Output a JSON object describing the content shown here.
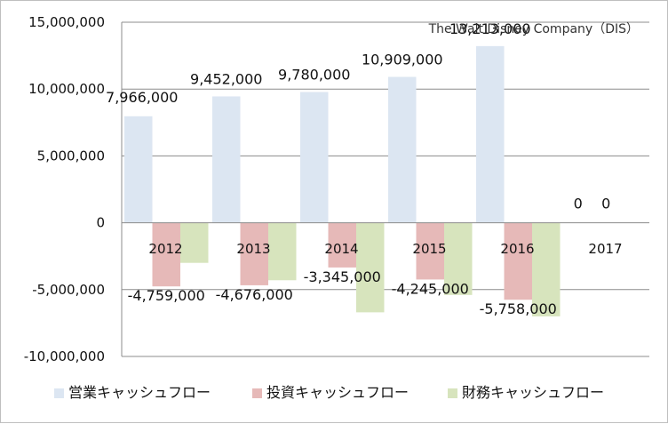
{
  "chart_data": {
    "type": "bar",
    "title": "The Walt Disney Company（DIS）",
    "categories": [
      "2012",
      "2013",
      "2014",
      "2015",
      "2016",
      "2017"
    ],
    "ylim": [
      -10000000,
      15000000
    ],
    "yticks": [
      -10000000,
      -5000000,
      0,
      5000000,
      10000000,
      15000000
    ],
    "ytick_labels": [
      "-10,000,000",
      "-5,000,000",
      "0",
      "5,000,000",
      "10,000,000",
      "15,000,000"
    ],
    "grid": true,
    "legend_position": "bottom",
    "series": [
      {
        "name": "営業キャッシュフロー",
        "color": "#dce6f2",
        "values": [
          7966000,
          9452000,
          9780000,
          10909000,
          13213000,
          0
        ],
        "labels": [
          "7,966,000",
          "9,452,000",
          "9,780,000",
          "10,909,000",
          "13,213,000",
          "0"
        ]
      },
      {
        "name": "投資キャッシュフロー",
        "color": "#e6b9b8",
        "values": [
          -4759000,
          -4676000,
          -3345000,
          -4245000,
          -5758000,
          0
        ],
        "labels": [
          "-4,759,000",
          "-4,676,000",
          "-3,345,000",
          "-4,245,000",
          "-5,758,000",
          "0"
        ]
      },
      {
        "name": "財務キャッシュフロー",
        "color": "#d7e4bd",
        "values": [
          -3000000,
          -4300000,
          -6700000,
          -5400000,
          -7000000,
          0
        ],
        "labels": []
      }
    ]
  }
}
